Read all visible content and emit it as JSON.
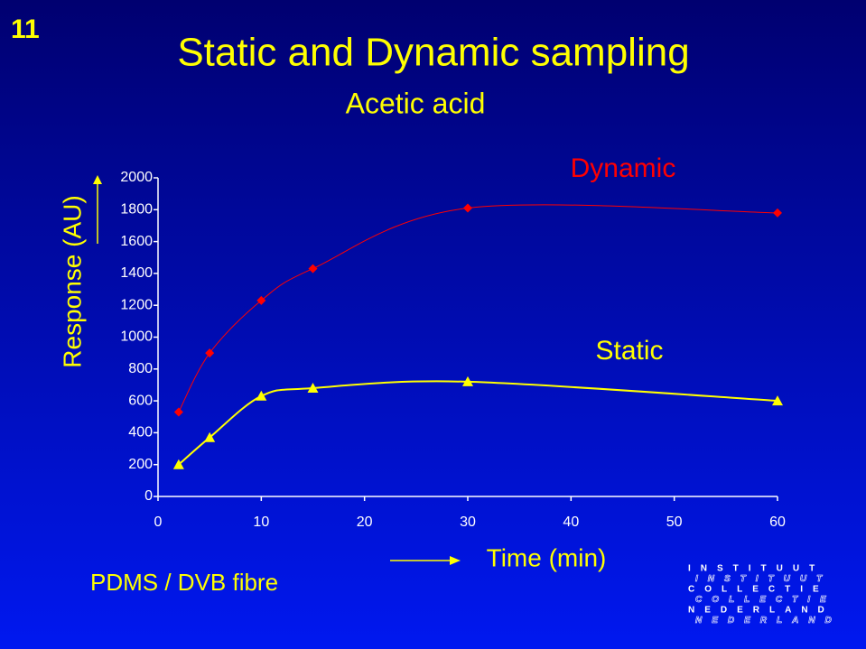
{
  "slide_number": "11",
  "chart_data": {
    "type": "line",
    "title": "Static and Dynamic sampling",
    "subtitle": "Acetic acid",
    "y_label": "Response (AU)",
    "x_label": "Time (min)",
    "x": [
      2,
      5,
      10,
      15,
      30,
      60
    ],
    "series": [
      {
        "name": "Dynamic",
        "color": "#ff0000",
        "marker": "diamond",
        "values": [
          530,
          900,
          1230,
          1430,
          1810,
          1780
        ]
      },
      {
        "name": "Static",
        "color": "#ffff00",
        "marker": "triangle",
        "values": [
          200,
          370,
          630,
          680,
          720,
          600
        ]
      }
    ],
    "xlim": [
      0,
      60
    ],
    "xticks": [
      0,
      10,
      20,
      30,
      40,
      50,
      60
    ],
    "ylim": [
      0,
      2000
    ],
    "yticks": [
      0,
      200,
      400,
      600,
      800,
      1000,
      1200,
      1400,
      1600,
      1800,
      2000
    ],
    "smooth": true
  },
  "note": "PDMS / DVB fibre",
  "logo": {
    "rows": [
      "INSTITUUT",
      "INSTITUUT",
      "COLLECTIE",
      "COLLECTIE",
      "NEDERLAND",
      "NEDERLAND"
    ]
  }
}
